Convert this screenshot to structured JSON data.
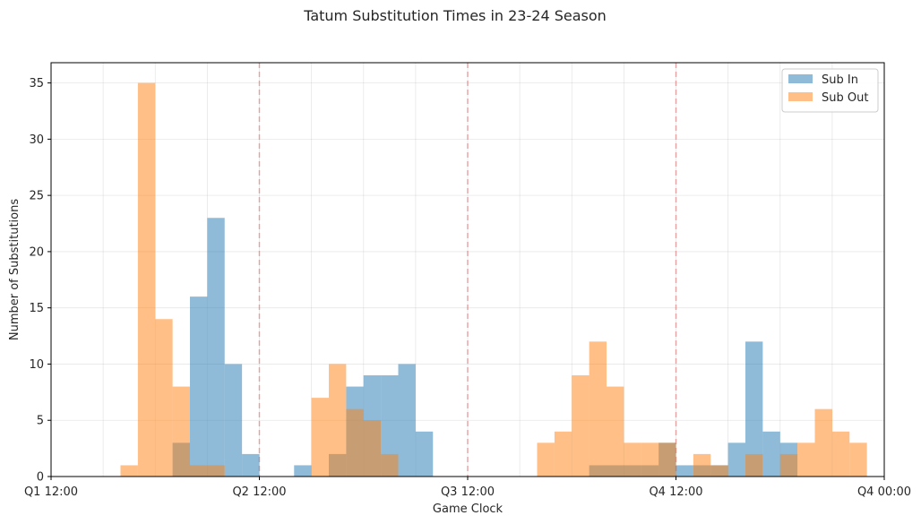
{
  "chart_data": {
    "type": "bar",
    "title": "Tatum Substitution Times in 23-24 Season",
    "xlabel": "Game Clock",
    "ylabel": "Number of Substitutions",
    "xlim": [
      0,
      48
    ],
    "ylim": [
      0,
      36.8
    ],
    "x_ticks": [
      {
        "value": 0,
        "label": "Q1 12:00"
      },
      {
        "value": 12,
        "label": "Q2 12:00"
      },
      {
        "value": 24,
        "label": "Q3 12:00"
      },
      {
        "value": 36,
        "label": "Q4 12:00"
      },
      {
        "value": 48,
        "label": "Q4 00:00"
      }
    ],
    "y_ticks": [
      0,
      5,
      10,
      15,
      20,
      25,
      30,
      35
    ],
    "quarter_lines": [
      12,
      24,
      36
    ],
    "grid": true,
    "legend_position": "top-right",
    "bin_width": 1,
    "series": [
      {
        "name": "Sub In",
        "color": "#1f77b4",
        "opacity": 0.5,
        "bins": [
          {
            "x": 7,
            "value": 3
          },
          {
            "x": 8,
            "value": 16
          },
          {
            "x": 9,
            "value": 23
          },
          {
            "x": 10,
            "value": 10
          },
          {
            "x": 11,
            "value": 2
          },
          {
            "x": 14,
            "value": 1
          },
          {
            "x": 16,
            "value": 2
          },
          {
            "x": 17,
            "value": 8
          },
          {
            "x": 18,
            "value": 9
          },
          {
            "x": 19,
            "value": 9
          },
          {
            "x": 20,
            "value": 10
          },
          {
            "x": 21,
            "value": 4
          },
          {
            "x": 31,
            "value": 1
          },
          {
            "x": 32,
            "value": 1
          },
          {
            "x": 33,
            "value": 1
          },
          {
            "x": 34,
            "value": 1
          },
          {
            "x": 35,
            "value": 3
          },
          {
            "x": 36,
            "value": 1
          },
          {
            "x": 37,
            "value": 1
          },
          {
            "x": 38,
            "value": 1
          },
          {
            "x": 39,
            "value": 3
          },
          {
            "x": 40,
            "value": 12
          },
          {
            "x": 41,
            "value": 4
          },
          {
            "x": 42,
            "value": 3
          }
        ]
      },
      {
        "name": "Sub Out",
        "color": "#ff7f0e",
        "opacity": 0.5,
        "bins": [
          {
            "x": 4,
            "value": 1
          },
          {
            "x": 5,
            "value": 35
          },
          {
            "x": 6,
            "value": 14
          },
          {
            "x": 7,
            "value": 8
          },
          {
            "x": 8,
            "value": 1
          },
          {
            "x": 9,
            "value": 1
          },
          {
            "x": 15,
            "value": 7
          },
          {
            "x": 16,
            "value": 10
          },
          {
            "x": 17,
            "value": 6
          },
          {
            "x": 18,
            "value": 5
          },
          {
            "x": 19,
            "value": 2
          },
          {
            "x": 28,
            "value": 3
          },
          {
            "x": 29,
            "value": 4
          },
          {
            "x": 30,
            "value": 9
          },
          {
            "x": 31,
            "value": 12
          },
          {
            "x": 32,
            "value": 8
          },
          {
            "x": 33,
            "value": 3
          },
          {
            "x": 34,
            "value": 3
          },
          {
            "x": 35,
            "value": 3
          },
          {
            "x": 37,
            "value": 2
          },
          {
            "x": 38,
            "value": 1
          },
          {
            "x": 40,
            "value": 2
          },
          {
            "x": 42,
            "value": 2
          },
          {
            "x": 43,
            "value": 3
          },
          {
            "x": 44,
            "value": 6
          },
          {
            "x": 45,
            "value": 4
          },
          {
            "x": 46,
            "value": 3
          }
        ]
      }
    ]
  }
}
